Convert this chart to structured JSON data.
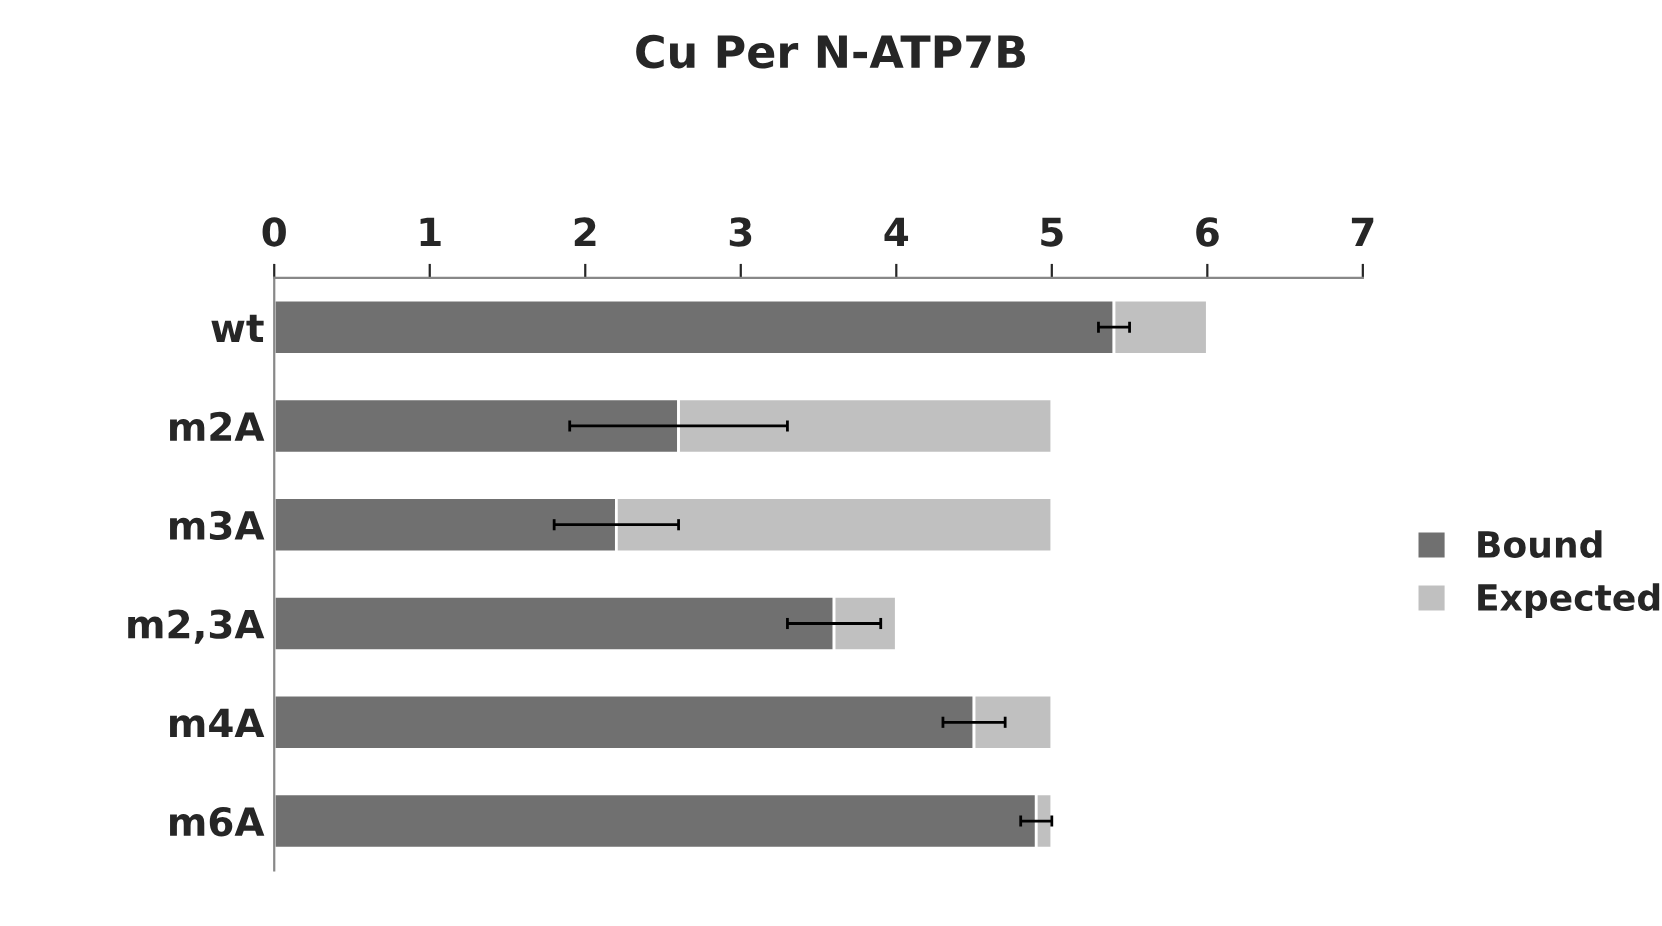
{
  "chart_data": {
    "type": "bar",
    "orientation": "horizontal",
    "stacked": true,
    "title": "Cu Per N-ATP7B",
    "categories": [
      "wt",
      "m2A",
      "m3A",
      "m2,3A",
      "m4A",
      "m6A"
    ],
    "series": [
      {
        "name": "Bound",
        "color": "#707070",
        "values": [
          5.4,
          2.6,
          2.2,
          3.6,
          4.5,
          4.9
        ],
        "errors": [
          0.1,
          0.7,
          0.4,
          0.3,
          0.2,
          0.1
        ]
      },
      {
        "name": "Expected",
        "color": "#c0c0c0",
        "values": [
          0.6,
          2.4,
          2.8,
          0.4,
          0.5,
          0.1
        ]
      }
    ],
    "xlim": [
      0,
      7
    ],
    "xticks": [
      0,
      1,
      2,
      3,
      4,
      5,
      6,
      7
    ],
    "grid": false,
    "legend": "right"
  }
}
